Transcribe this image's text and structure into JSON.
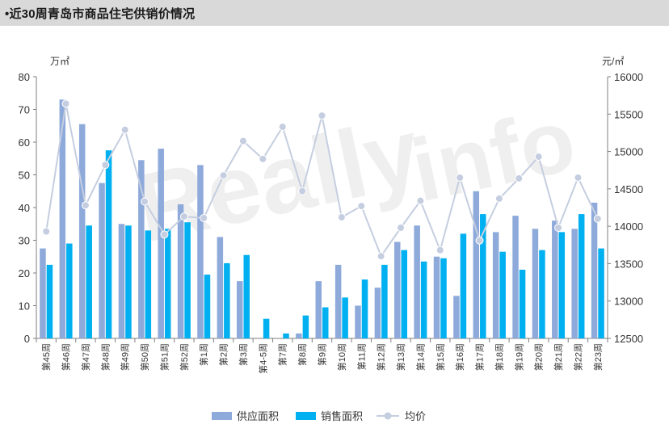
{
  "header": {
    "title": "•近30周青岛市商品住宅供销价情况"
  },
  "colors": {
    "supply": "#8eaadb",
    "sales": "#00b0f0",
    "price": "#c5cee0",
    "axis": "#7f7f7f"
  },
  "chart_data": {
    "type": "bar",
    "title": "近30周青岛市商品住宅供销价情况",
    "y_left_unit": "万㎡",
    "y_right_unit": "元/㎡",
    "ylim_left": [
      0,
      80
    ],
    "ylim_right": [
      12500,
      16000
    ],
    "y_left_ticks": [
      0,
      10,
      20,
      30,
      40,
      50,
      60,
      70,
      80
    ],
    "y_right_ticks": [
      12500,
      13000,
      13500,
      14000,
      14500,
      15000,
      15500,
      16000
    ],
    "categories": [
      "第45周",
      "第46周",
      "第47周",
      "第48周",
      "第49周",
      "第50周",
      "第51周",
      "第52周",
      "第1周",
      "第2周",
      "第3周",
      "第4-5周",
      "第7周",
      "第8周",
      "第9周",
      "第10周",
      "第11周",
      "第12周",
      "第13周",
      "第14周",
      "第15周",
      "第16周",
      "第17周",
      "第18周",
      "第19周",
      "第20周",
      "第21周",
      "第22周",
      "第23周"
    ],
    "series": [
      {
        "name": "供应面积",
        "type": "bar",
        "axis": "left",
        "values": [
          27.5,
          73,
          65.5,
          47.5,
          35,
          54.5,
          58,
          41,
          53,
          31,
          17.5,
          0,
          0,
          1.5,
          17.5,
          22.5,
          10,
          15.5,
          29.5,
          34.5,
          25,
          13,
          45,
          32.5,
          37.5,
          33.5,
          36,
          33.5,
          41.5
        ]
      },
      {
        "name": "销售面积",
        "type": "bar",
        "axis": "left",
        "values": [
          22.5,
          29,
          34.5,
          57.5,
          34.5,
          33,
          33.5,
          35.5,
          19.5,
          23,
          25.5,
          6,
          1.5,
          7,
          9.5,
          12.5,
          18,
          22.5,
          27,
          23.5,
          24.5,
          32,
          38,
          26.5,
          21,
          27,
          32.5,
          38,
          27.5
        ]
      },
      {
        "name": "均价",
        "type": "line",
        "axis": "right",
        "values": [
          13930,
          15640,
          14280,
          14820,
          15290,
          14330,
          13890,
          14130,
          14110,
          14680,
          15140,
          14900,
          15330,
          14470,
          15480,
          14120,
          14270,
          13600,
          13980,
          14340,
          13680,
          14650,
          13810,
          14370,
          14640,
          14930,
          13980,
          14650,
          14100
        ]
      }
    ],
    "legend": "bottom-center",
    "grid": false
  }
}
